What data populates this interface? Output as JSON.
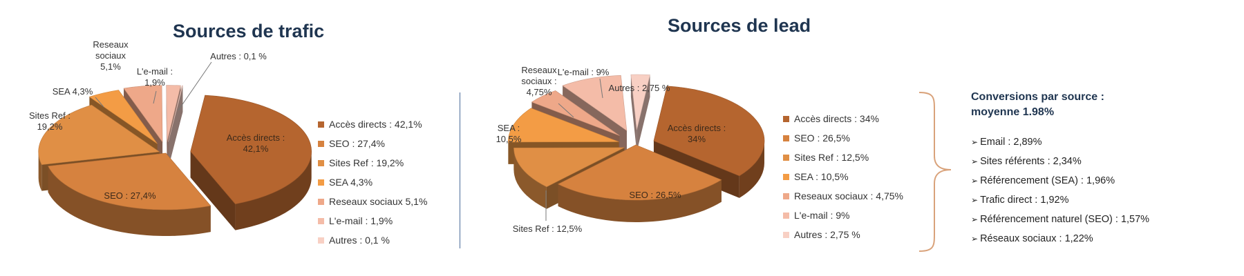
{
  "colors": {
    "acces": "#b5652f",
    "seo": "#d6823f",
    "sites": "#e08f45",
    "sea": "#f39c45",
    "reseaux": "#eea889",
    "email": "#f4bca8",
    "autres": "#f8d0c4",
    "title": "#1f3550"
  },
  "chart_data": [
    {
      "type": "pie",
      "title": "Sources de trafic",
      "categories": [
        "Accès directs",
        "SEO",
        "Sites Ref",
        "SEA",
        "Reseaux sociaux",
        "L'e-mail",
        "Autres"
      ],
      "values": [
        42.1,
        27.4,
        19.2,
        4.3,
        5.1,
        1.9,
        0.1
      ],
      "legend": [
        "Accès directs : 42,1%",
        "SEO : 27,4%",
        "Sites Ref : 19,2%",
        "SEA 4,3%",
        "Reseaux sociaux 5,1%",
        "L'e-mail : 1,9%",
        "Autres : 0,1 %"
      ],
      "data_labels": [
        [
          "Accès directs :",
          "42,1%"
        ],
        [
          "SEO : 27,4%"
        ],
        [
          "Sites Ref :",
          "19,2%"
        ],
        [
          "SEA 4,3%"
        ],
        [
          "Reseaux",
          "sociaux",
          "5,1%"
        ],
        [
          "L'e-mail :",
          "1,9%"
        ],
        [
          "Autres : 0,1 %"
        ]
      ],
      "legend_position": "right"
    },
    {
      "type": "pie",
      "title": "Sources de lead",
      "categories": [
        "Accès directs",
        "SEO",
        "Sites Ref",
        "SEA",
        "Reseaux sociaux",
        "L'e-mail",
        "Autres"
      ],
      "values": [
        34,
        26.5,
        12.5,
        10.5,
        4.75,
        9,
        2.75
      ],
      "legend": [
        "Accès directs : 34%",
        "SEO : 26,5%",
        "Sites Ref : 12,5%",
        "SEA : 10,5%",
        "Reseaux sociaux : 4,75%",
        "L'e-mail : 9%",
        "Autres : 2,75 %"
      ],
      "data_labels": [
        [
          "Accès directs :",
          "34%"
        ],
        [
          "SEO : 26,5%"
        ],
        [
          "Sites Ref : 12,5%"
        ],
        [
          "SEA :",
          "10,5%"
        ],
        [
          "Reseaux",
          "sociaux :",
          "4,75%"
        ],
        [
          "L'e-mail : 9%"
        ],
        [
          "Autres : 2,75 %"
        ]
      ],
      "legend_position": "right"
    }
  ],
  "conversions": {
    "title_line1": "Conversions par source :",
    "title_line2": "moyenne 1.98%",
    "items": [
      "Email : 2,89%",
      "Sites référents : 2,34%",
      "Référencement (SEA) : 1,96%",
      "Trafic direct : 1,92%",
      "Référencement naturel (SEO) : 1,57%",
      "Réseaux sociaux : 1,22%"
    ]
  }
}
